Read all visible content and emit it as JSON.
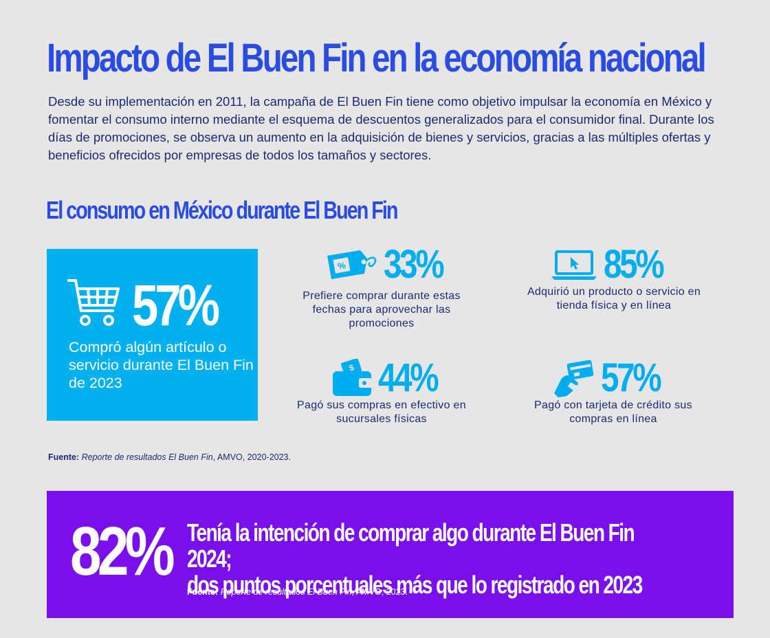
{
  "title": "Impacto de El Buen Fin en la economía nacional",
  "intro": "Desde su implementación en 2011, la campaña de El Buen Fin tiene como objetivo impulsar la economía en México y fomentar el consumo interno mediante el esquema de descuentos generalizados para el consumidor final. Durante los días de promociones, se observa un aumento en la adquisición de bienes y servicios, gracias a las múltiples ofertas y beneficios ofrecidos por empresas de todos los tamaños y sectores.",
  "subtitle": "El consumo en México durante El Buen Fin",
  "hero": {
    "icon": "shopping-cart-icon",
    "value": "57%",
    "text": "Compró algún artículo o servicio durante El Buen Fin de 2023"
  },
  "stats": [
    {
      "icon": "price-tag-icon",
      "value": "33%",
      "text": "Prefiere comprar durante estas fechas para aprovechar las promociones"
    },
    {
      "icon": "laptop-icon",
      "value": "85%",
      "text": "Adquirió un producto o servicio en tienda física y en línea"
    },
    {
      "icon": "wallet-cash-icon",
      "value": "44%",
      "text": "Pagó sus compras en efectivo en sucursales físicas"
    },
    {
      "icon": "credit-card-hand-icon",
      "value": "57%",
      "text": "Pagó con tarjeta de crédito sus compras en línea"
    }
  ],
  "source1": {
    "label": "Fuente:",
    "title": "Reporte de resultados El Buen Fin",
    "rest": ", AMVO, 2020-2023."
  },
  "banner": {
    "value": "82%",
    "line1": "Tenía la intención de comprar algo durante El Buen Fin 2024;",
    "line2": "dos puntos porcentuales más que lo registrado en 2023",
    "source": {
      "label": "Fuente:",
      "title": "Reporte de resultados El Buen Fin",
      "rest": ", AMVO, 2023."
    }
  },
  "colors": {
    "accent_blue": "#2b4ce0",
    "cyan": "#00b0ef",
    "purple": "#7a0fee",
    "text_navy": "#1b2a73"
  }
}
